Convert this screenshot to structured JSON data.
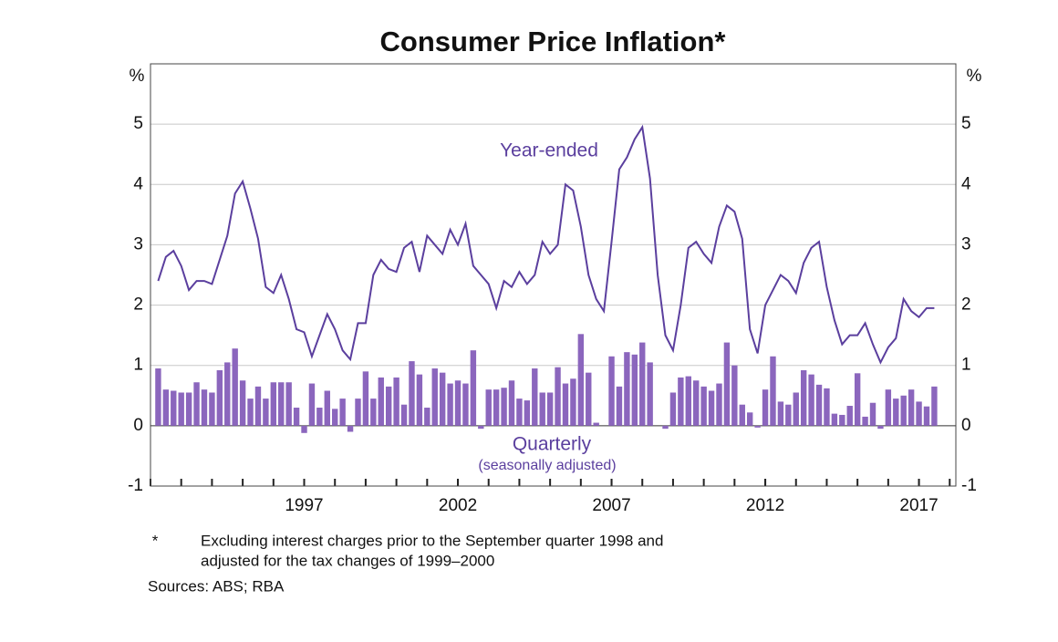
{
  "chart_data": {
    "type": "combo",
    "title": "Consumer Price Inflation*",
    "y_unit": "%",
    "x": [
      1992.25,
      1992.5,
      1992.75,
      1993,
      1993.25,
      1993.5,
      1993.75,
      1994,
      1994.25,
      1994.5,
      1994.75,
      1995,
      1995.25,
      1995.5,
      1995.75,
      1996,
      1996.25,
      1996.5,
      1996.75,
      1997,
      1997.25,
      1997.5,
      1997.75,
      1998,
      1998.25,
      1998.5,
      1998.75,
      1999,
      1999.25,
      1999.5,
      1999.75,
      2000,
      2000.25,
      2000.5,
      2000.75,
      2001,
      2001.25,
      2001.5,
      2001.75,
      2002,
      2002.25,
      2002.5,
      2002.75,
      2003,
      2003.25,
      2003.5,
      2003.75,
      2004,
      2004.25,
      2004.5,
      2004.75,
      2005,
      2005.25,
      2005.5,
      2005.75,
      2006,
      2006.25,
      2006.5,
      2006.75,
      2007,
      2007.25,
      2007.5,
      2007.75,
      2008,
      2008.25,
      2008.5,
      2008.75,
      2009,
      2009.25,
      2009.5,
      2009.75,
      2010,
      2010.25,
      2010.5,
      2010.75,
      2011,
      2011.25,
      2011.5,
      2011.75,
      2012,
      2012.25,
      2012.5,
      2012.75,
      2013,
      2013.25,
      2013.5,
      2013.75,
      2014,
      2014.25,
      2014.5,
      2014.75,
      2015,
      2015.25,
      2015.5,
      2015.75,
      2016,
      2016.25,
      2016.5,
      2016.75,
      2017,
      2017.25,
      2017.5
    ],
    "series": [
      {
        "name": "Year-ended",
        "type": "line",
        "color": "#5b3f9e",
        "values": [
          2.4,
          2.8,
          2.9,
          2.65,
          2.25,
          2.4,
          2.4,
          2.35,
          2.75,
          3.15,
          3.85,
          4.05,
          3.6,
          3.1,
          2.3,
          2.2,
          2.5,
          2.1,
          1.6,
          1.55,
          1.15,
          1.5,
          1.85,
          1.6,
          1.25,
          1.1,
          1.7,
          1.7,
          2.5,
          2.75,
          2.6,
          2.55,
          2.95,
          3.05,
          2.55,
          3.15,
          3.0,
          2.85,
          3.25,
          3.0,
          3.35,
          2.65,
          2.5,
          2.35,
          1.95,
          2.4,
          2.3,
          2.55,
          2.35,
          2.5,
          3.05,
          2.85,
          3.0,
          4.0,
          3.9,
          3.3,
          2.5,
          2.1,
          1.9,
          3.05,
          4.25,
          4.45,
          4.75,
          4.95,
          4.1,
          2.5,
          1.5,
          1.25,
          2.0,
          2.95,
          3.05,
          2.85,
          2.7,
          3.3,
          3.65,
          3.55,
          3.1,
          1.6,
          1.2,
          2.0,
          2.25,
          2.5,
          2.4,
          2.2,
          2.7,
          2.95,
          3.05,
          2.3,
          1.75,
          1.35,
          1.5,
          1.5,
          1.7,
          1.35,
          1.05,
          1.3,
          1.45,
          2.1,
          1.9,
          1.8,
          1.95,
          1.95
        ]
      },
      {
        "name": "Quarterly",
        "note": "(seasonally adjusted)",
        "type": "bar",
        "color": "#8b66bd",
        "values": [
          0.95,
          0.6,
          0.58,
          0.55,
          0.55,
          0.72,
          0.6,
          0.55,
          0.92,
          1.05,
          1.28,
          0.75,
          0.45,
          0.65,
          0.45,
          0.72,
          0.72,
          0.72,
          0.3,
          -0.12,
          0.7,
          0.3,
          0.58,
          0.28,
          0.45,
          -0.1,
          0.45,
          0.9,
          0.45,
          0.8,
          0.65,
          0.8,
          0.35,
          1.07,
          0.85,
          0.3,
          0.95,
          0.88,
          0.7,
          0.75,
          0.7,
          1.25,
          -0.05,
          0.6,
          0.6,
          0.63,
          0.75,
          0.45,
          0.42,
          0.95,
          0.55,
          0.55,
          0.97,
          0.7,
          0.78,
          1.52,
          0.88,
          0.05,
          0,
          1.15,
          0.65,
          1.22,
          1.18,
          1.38,
          1.05,
          0,
          -0.05,
          0.55,
          0.8,
          0.82,
          0.75,
          0.65,
          0.58,
          0.7,
          1.38,
          1.0,
          0.35,
          0.22,
          -0.03,
          0.6,
          1.15,
          0.4,
          0.35,
          0.55,
          0.92,
          0.85,
          0.68,
          0.62,
          0.2,
          0.18,
          0.33,
          0.87,
          0.15,
          0.38,
          -0.05,
          0.6,
          0.45,
          0.5,
          0.6,
          0.4,
          0.32,
          0.65
        ]
      }
    ],
    "xlim": [
      1992,
      2018.2
    ],
    "xticks": [
      1997,
      2002,
      2007,
      2012,
      2017
    ],
    "ylim": [
      -1,
      6
    ],
    "yticks": [
      -1,
      0,
      1,
      2,
      3,
      4,
      5
    ],
    "grid": true,
    "footnote": {
      "marker": "*",
      "lines": [
        "Excluding interest charges prior to the September quarter 1998 and",
        "adjusted for the tax changes of 1999–2000"
      ]
    },
    "source": "Sources: ABS; RBA"
  }
}
